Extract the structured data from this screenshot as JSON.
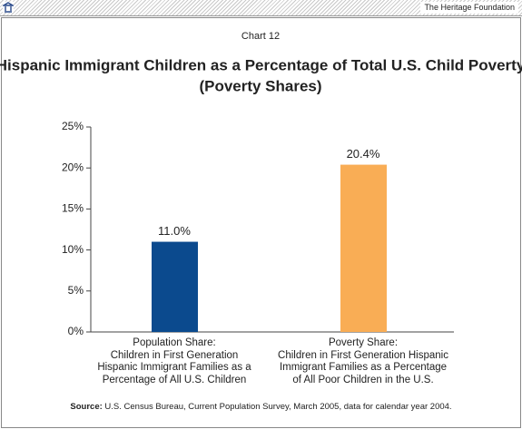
{
  "header": {
    "organization": "The Heritage Foundation"
  },
  "chart_data": {
    "type": "bar",
    "label": "Chart 12",
    "title": "Hispanic Immigrant Children as a Percentage of Total U.S. Child Poverty",
    "subtitle": "(Poverty Shares)",
    "categories": [
      "Population Share:\nChildren in First Generation\nHispanic Immigrant Families as a\nPercentage of All U.S. Children",
      "Poverty Share:\nChildren in First Generation Hispanic\nImmigrant Families as a Percentage\nof All Poor Children in the U.S."
    ],
    "values": [
      11.0,
      20.4
    ],
    "value_labels": [
      "11.0%",
      "20.4%"
    ],
    "colors": [
      "#0b4a8e",
      "#f9ad55"
    ],
    "ylim": [
      0,
      25
    ],
    "yticks": [
      {
        "value": 0,
        "label": "0%"
      },
      {
        "value": 5,
        "label": "5%"
      },
      {
        "value": 10,
        "label": "10%"
      },
      {
        "value": 15,
        "label": "15%"
      },
      {
        "value": 20,
        "label": "20%"
      },
      {
        "value": 25,
        "label": "25%"
      }
    ],
    "grid": false,
    "source_label": "Source:",
    "source": "U.S. Census Bureau, Current Population Survey, March 2005, data for calendar year 2004."
  }
}
